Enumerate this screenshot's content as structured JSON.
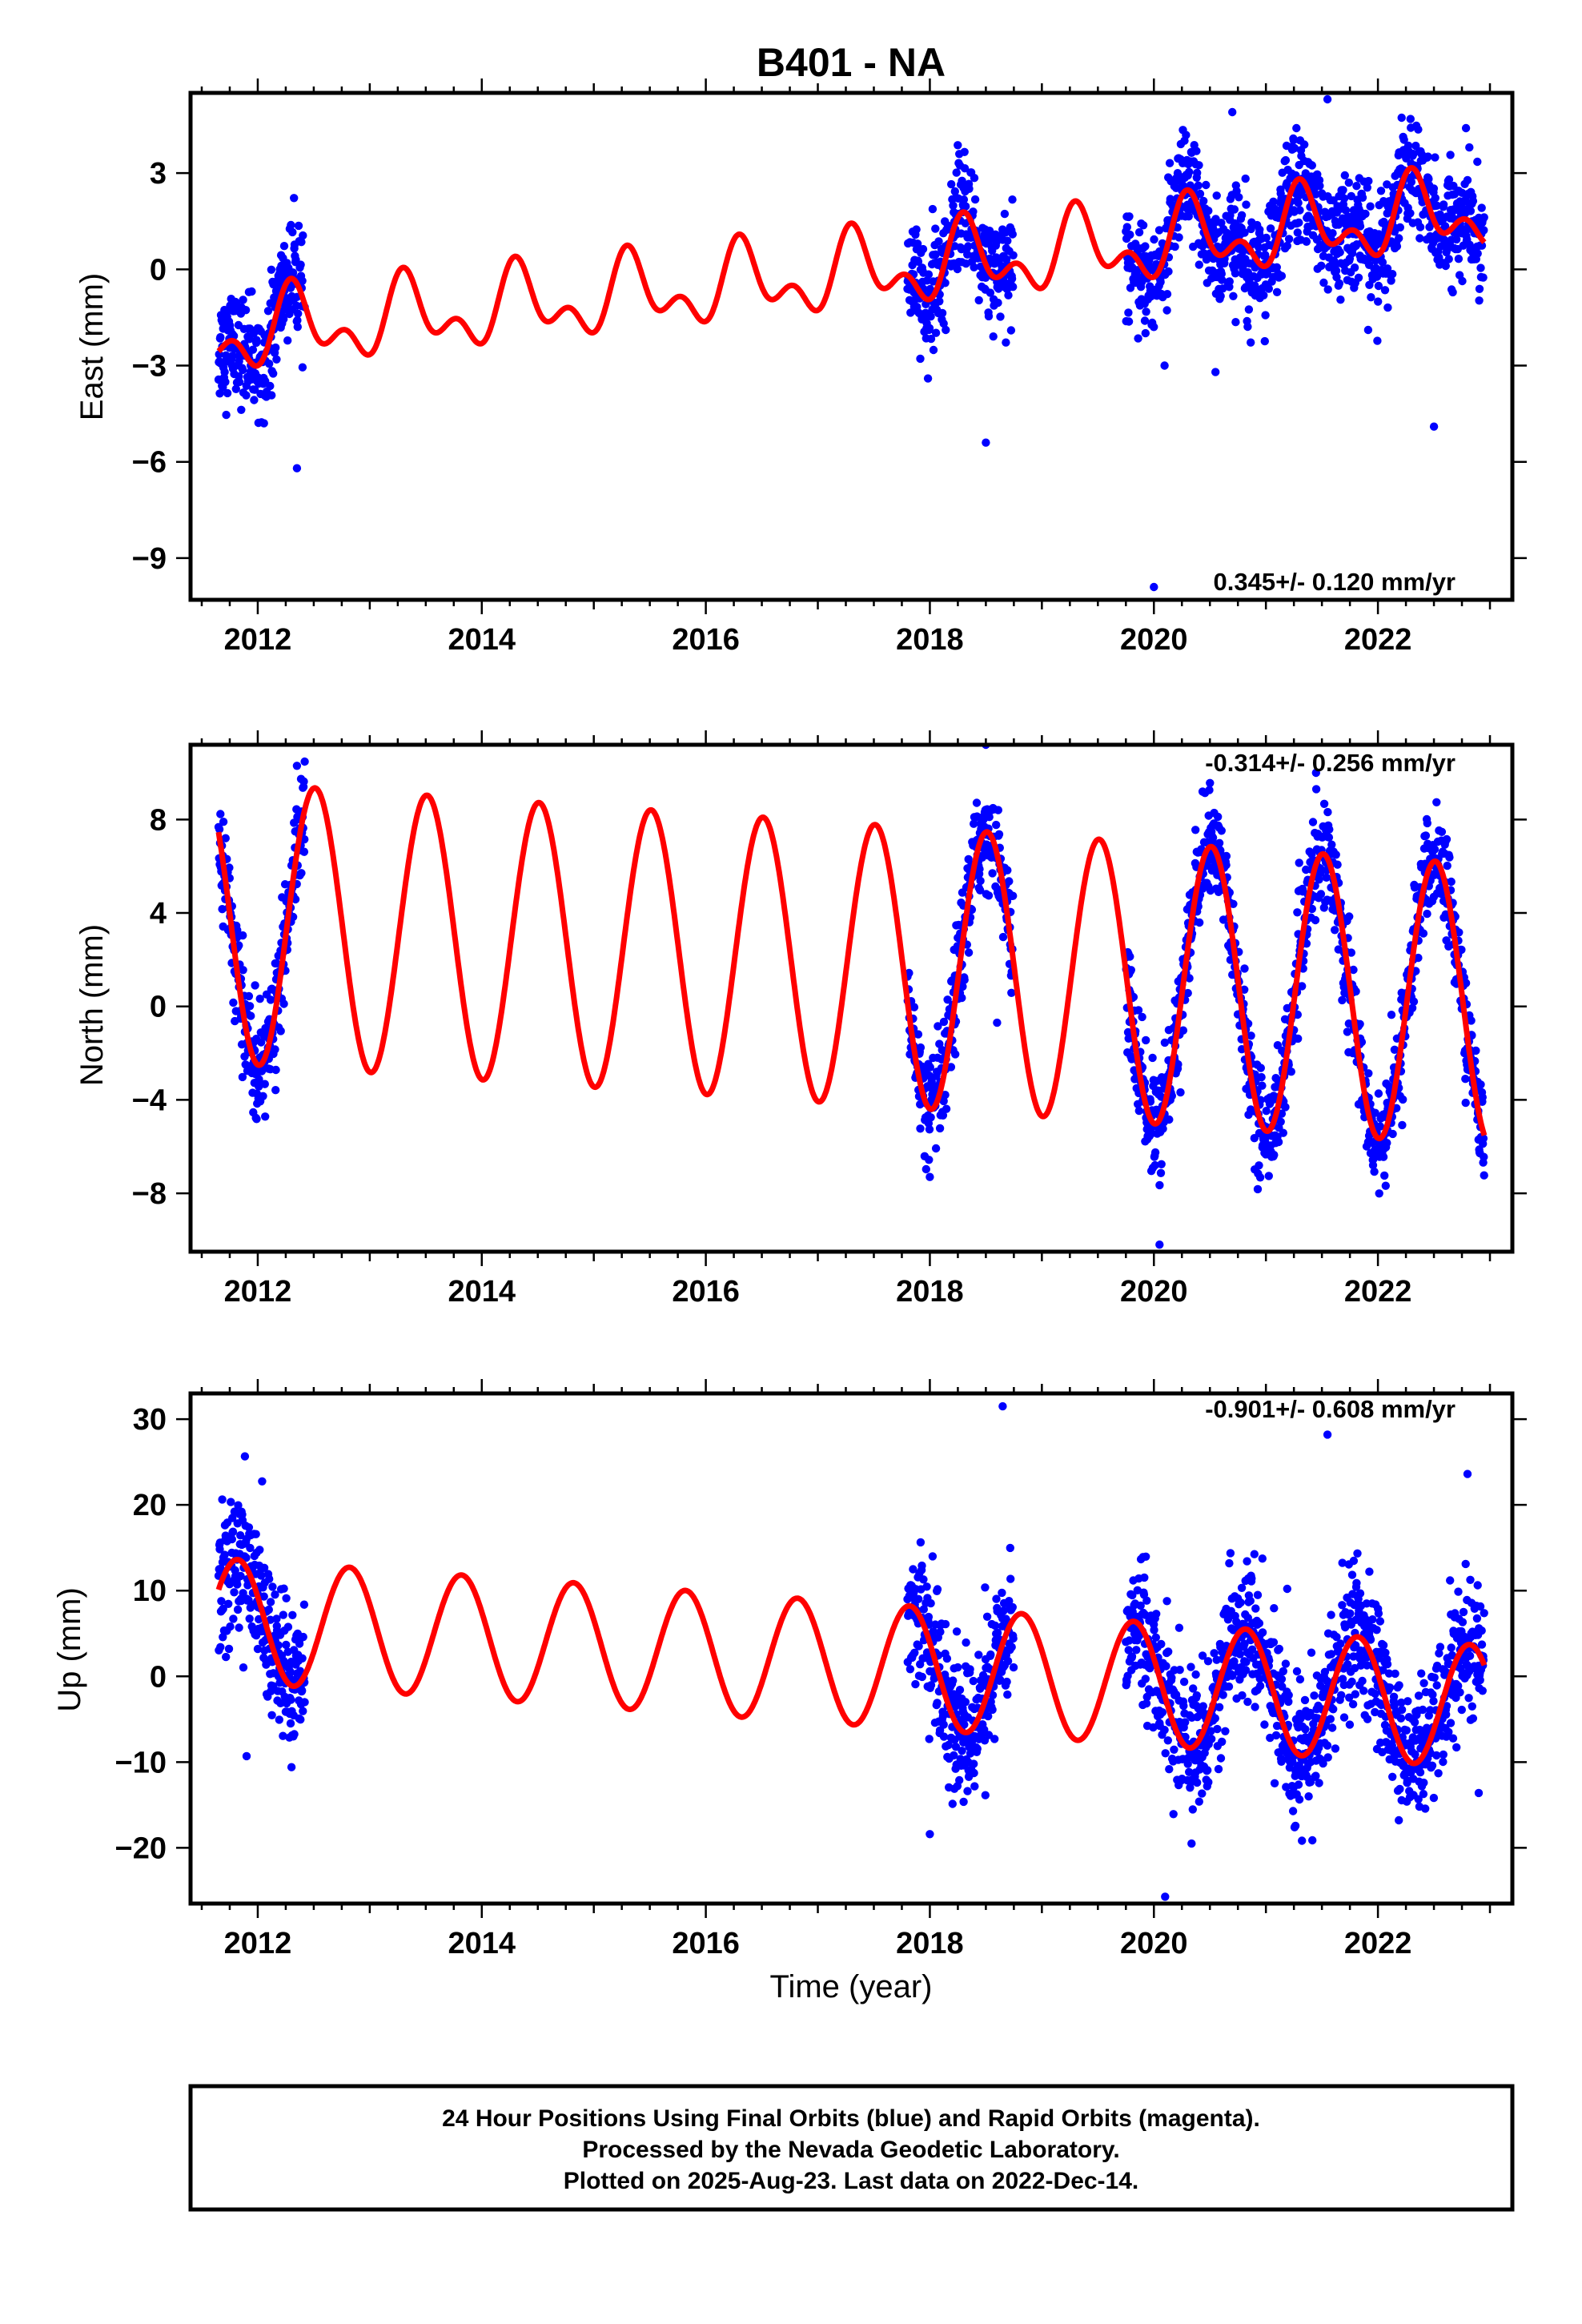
{
  "title": "B401 - NA",
  "colors": {
    "data": "#0000ff",
    "model": "#ff0000",
    "frame": "#000000"
  },
  "x_tick_labels": [
    "2012",
    "2014",
    "2016",
    "2018",
    "2020",
    "2022"
  ],
  "xlabel": "Time (year)",
  "caption": [
    "24 Hour Positions Using Final Orbits (blue) and Rapid Orbits (magenta).",
    "Processed by the Nevada Geodetic Laboratory.",
    "Plotted on 2025-Aug-23. Last data on 2022-Dec-14."
  ],
  "chart_data": [
    {
      "type": "scatter",
      "component": "east",
      "ylabel": "East (mm)",
      "rate_label": "0.345+/- 0.120 mm/yr",
      "rate_position": "bottom-right",
      "xlim": [
        2011.4,
        2023.2
      ],
      "ylim": [
        -10.3,
        5.5
      ],
      "xticks": [
        2012,
        2014,
        2016,
        2018,
        2020,
        2022
      ],
      "yticks": [
        3,
        0,
        -3,
        -6,
        -9
      ],
      "ytick_labels": [
        "3",
        "0",
        "−3",
        "−6",
        "−9"
      ],
      "data_segments": [
        [
          2011.65,
          2012.42
        ],
        [
          2017.8,
          2018.75
        ],
        [
          2019.75,
          2022.95
        ]
      ],
      "model": {
        "rate": 0.345,
        "intercept": -1.95,
        "t_ref": 2012.0,
        "annual_cos": -0.45,
        "annual_sin": 0.8,
        "semiannual_cos": -0.6,
        "semiannual_sin": -0.3
      },
      "series": [
        {
          "name": "Final Orbits",
          "style": "dots",
          "scatter_sd": 0.85
        },
        {
          "name": "model",
          "style": "line"
        }
      ],
      "outliers": [
        [
          2020.0,
          -9.9
        ],
        [
          2018.5,
          -5.4
        ],
        [
          2020.55,
          -3.2
        ],
        [
          2022.5,
          -4.9
        ],
        [
          2021.55,
          5.3
        ],
        [
          2020.7,
          4.9
        ],
        [
          2012.35,
          -6.2
        ]
      ]
    },
    {
      "type": "scatter",
      "component": "north",
      "ylabel": "North (mm)",
      "rate_label": "-0.314+/- 0.256 mm/yr",
      "rate_position": "top-right",
      "xlim": [
        2011.4,
        2023.2
      ],
      "ylim": [
        -10.5,
        11.2
      ],
      "xticks": [
        2012,
        2014,
        2016,
        2018,
        2020,
        2022
      ],
      "yticks": [
        8,
        4,
        0,
        -4,
        -8
      ],
      "ytick_labels": [
        "8",
        "4",
        "0",
        "−4",
        "−8"
      ],
      "data_segments": [
        [
          2011.65,
          2012.42
        ],
        [
          2017.8,
          2018.75
        ],
        [
          2019.75,
          2022.95
        ]
      ],
      "model": {
        "rate": -0.314,
        "intercept": 3.5,
        "t_ref": 2012.0,
        "annual_cos": -6.0,
        "annual_sin": -0.4,
        "semiannual_cos": 0.0,
        "semiannual_sin": 0.0
      },
      "series": [
        {
          "name": "Final Orbits",
          "style": "dots",
          "scatter_sd": 1.1
        },
        {
          "name": "model",
          "style": "line"
        }
      ],
      "outliers": [
        [
          2018.5,
          11.2
        ],
        [
          2020.05,
          -10.2
        ],
        [
          2018.6,
          -0.7
        ],
        [
          2018.0,
          -7.3
        ],
        [
          2021.45,
          9.3
        ],
        [
          2012.35,
          10.3
        ]
      ]
    },
    {
      "type": "scatter",
      "component": "up",
      "ylabel": "Up (mm)",
      "rate_label": "-0.901+/- 0.608 mm/yr",
      "rate_position": "top-right",
      "xlim": [
        2011.4,
        2023.2
      ],
      "ylim": [
        -26.5,
        33.0
      ],
      "xticks": [
        2012,
        2014,
        2016,
        2018,
        2020,
        2022
      ],
      "yticks": [
        30,
        20,
        10,
        0,
        -10,
        -20
      ],
      "ytick_labels": [
        "30",
        "20",
        "10",
        "0",
        "−10",
        "−20"
      ],
      "data_segments": [
        [
          2011.65,
          2012.42
        ],
        [
          2017.8,
          2018.75
        ],
        [
          2019.75,
          2022.95
        ]
      ],
      "model": {
        "rate": -0.901,
        "intercept": 6.3,
        "t_ref": 2012.0,
        "annual_cos": 3.0,
        "annual_sin": -6.5,
        "semiannual_cos": 0.0,
        "semiannual_sin": 0.0
      },
      "series": [
        {
          "name": "Final Orbits",
          "style": "dots",
          "scatter_sd": 4.0
        },
        {
          "name": "model",
          "style": "line"
        }
      ],
      "outliers": [
        [
          2018.65,
          31.5
        ],
        [
          2021.55,
          28.2
        ],
        [
          2020.1,
          -25.7
        ],
        [
          2022.8,
          23.6
        ],
        [
          2018.0,
          -18.4
        ],
        [
          2011.9,
          -9.3
        ],
        [
          2022.9,
          -13.6
        ]
      ]
    }
  ]
}
